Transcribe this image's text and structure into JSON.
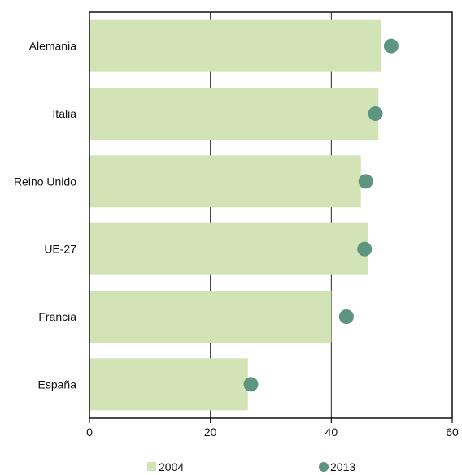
{
  "chart_data": {
    "type": "bar",
    "orientation": "horizontal",
    "categories": [
      "Alemania",
      "Italia",
      "Reino Unido",
      "UE-27",
      "Francia",
      "España"
    ],
    "series": [
      {
        "name": "2004",
        "mark": "bar",
        "values": [
          48.2,
          47.8,
          44.9,
          46.0,
          40.0,
          26.2
        ],
        "color": "#d2e3b6"
      },
      {
        "name": "2013",
        "mark": "dot",
        "values": [
          49.9,
          47.3,
          45.7,
          45.5,
          42.5,
          26.7
        ],
        "color": "#5e9580"
      }
    ],
    "xlim": [
      0,
      60
    ],
    "xticks": [
      "0",
      "20",
      "40",
      "60"
    ],
    "grid": "vertical",
    "legend": "bottom",
    "title": "",
    "xlabel": "",
    "ylabel": ""
  }
}
